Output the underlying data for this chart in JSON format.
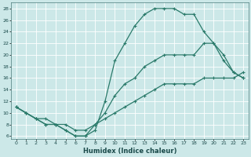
{
  "xlabel": "Humidex (Indice chaleur)",
  "bg_color": "#cce8e8",
  "grid_color": "#b8d8d8",
  "line_color": "#2a7a6a",
  "xlim": [
    -0.5,
    23.5
  ],
  "ylim": [
    5.5,
    29
  ],
  "xticks": [
    0,
    1,
    2,
    3,
    4,
    5,
    6,
    7,
    8,
    9,
    10,
    11,
    12,
    13,
    14,
    15,
    16,
    17,
    18,
    19,
    20,
    21,
    22,
    23
  ],
  "yticks": [
    6,
    8,
    10,
    12,
    14,
    16,
    18,
    20,
    22,
    24,
    26,
    28
  ],
  "line1_x": [
    0,
    1,
    2,
    3,
    4,
    5,
    6,
    7,
    8,
    9,
    10,
    11,
    12,
    13,
    14,
    15,
    16,
    17,
    18,
    19,
    20,
    21,
    22,
    23
  ],
  "line1_y": [
    11,
    10,
    9,
    8,
    8,
    7,
    6,
    6,
    7,
    12,
    19,
    22,
    25,
    27,
    28,
    28,
    28,
    27,
    27,
    24,
    22,
    19,
    17,
    16
  ],
  "line2_x": [
    0,
    1,
    2,
    3,
    4,
    5,
    6,
    7,
    8,
    9,
    10,
    11,
    12,
    13,
    14,
    15,
    16,
    17,
    18,
    19,
    20,
    21,
    22,
    23
  ],
  "line2_y": [
    11,
    10,
    9,
    8,
    8,
    7,
    6,
    6,
    8,
    10,
    13,
    15,
    16,
    18,
    19,
    20,
    20,
    20,
    20,
    22,
    22,
    20,
    17,
    16
  ],
  "line3_x": [
    0,
    1,
    2,
    3,
    4,
    5,
    6,
    7,
    8,
    9,
    10,
    11,
    12,
    13,
    14,
    15,
    16,
    17,
    18,
    19,
    20,
    21,
    22,
    23
  ],
  "line3_y": [
    11,
    10,
    9,
    9,
    8,
    8,
    7,
    7,
    8,
    9,
    10,
    11,
    12,
    13,
    14,
    15,
    15,
    15,
    15,
    16,
    16,
    16,
    16,
    17
  ]
}
